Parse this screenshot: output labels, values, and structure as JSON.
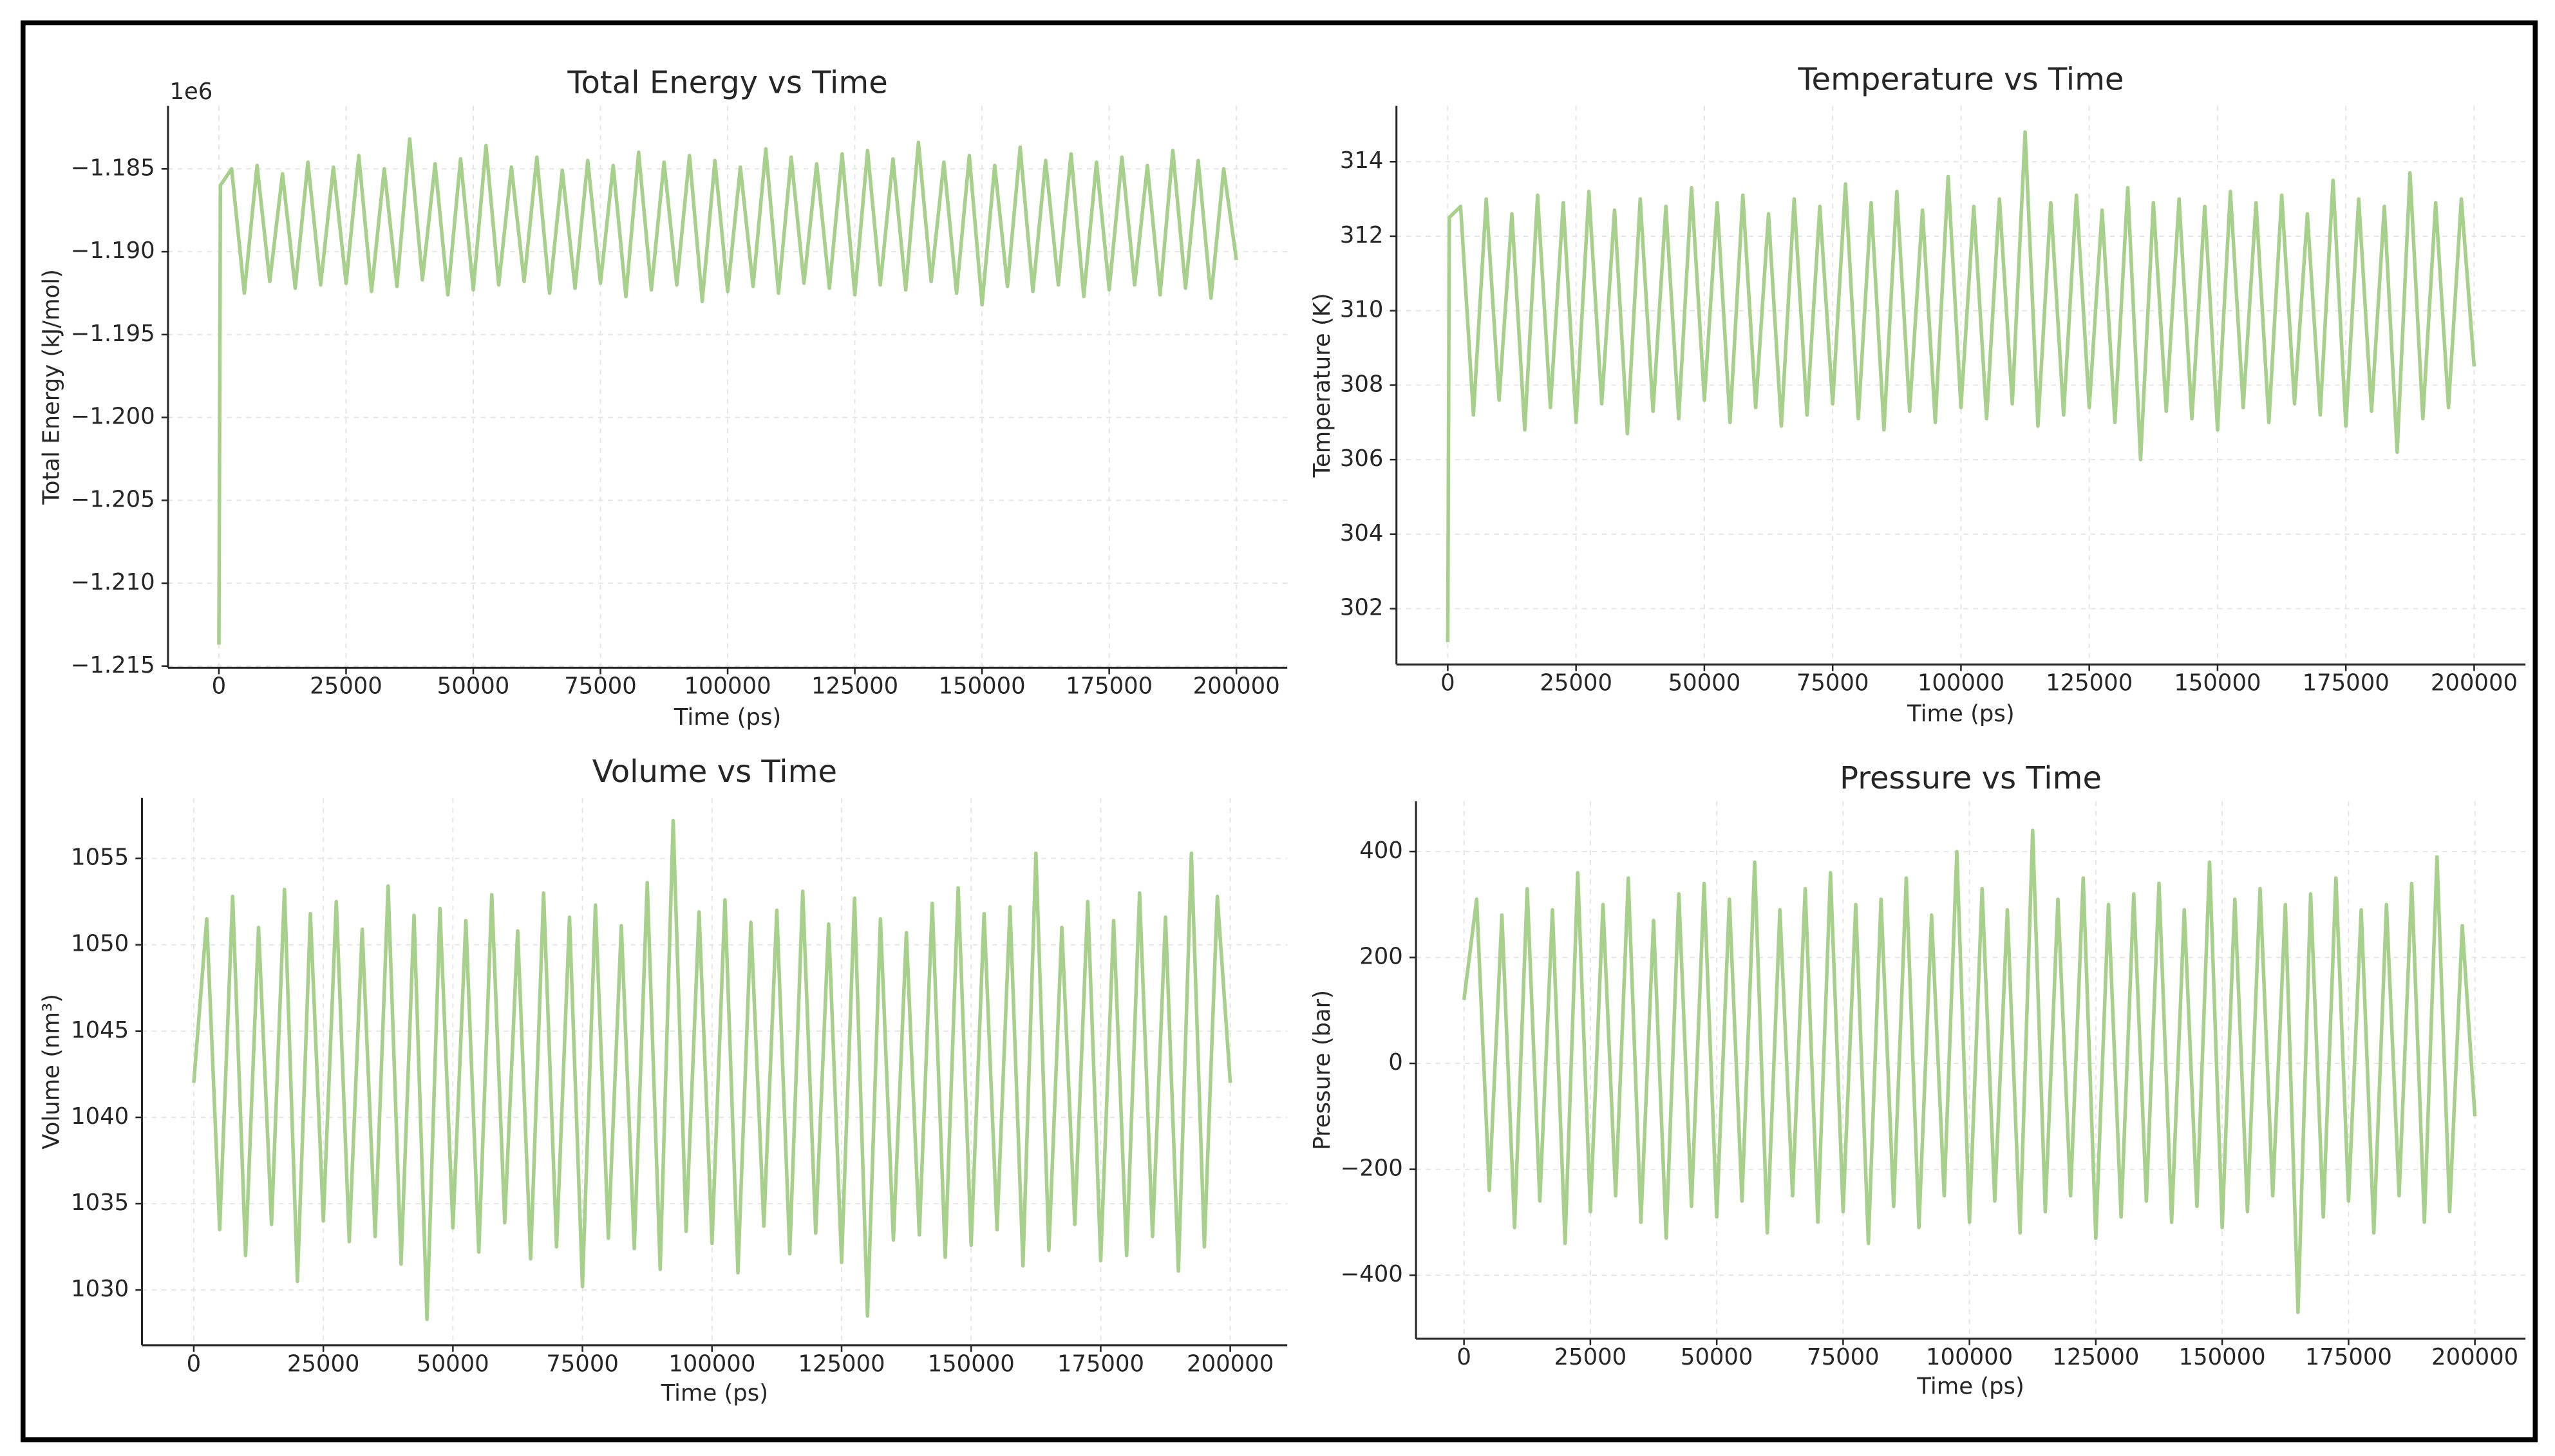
{
  "chart_data": [
    {
      "type": "line",
      "title": "Total Energy vs Time",
      "xlabel": "Time (ps)",
      "ylabel": "Total Energy (kJ/mol)",
      "offset_text": "1e6",
      "color": "#a8d08d",
      "grid": true,
      "x": [
        0,
        300,
        2500,
        5000,
        7500,
        10000,
        12500,
        15000,
        17500,
        20000,
        22500,
        25000,
        27500,
        30000,
        32500,
        35000,
        37500,
        40000,
        42500,
        45000,
        47500,
        50000,
        52500,
        55000,
        57500,
        60000,
        62500,
        65000,
        67500,
        70000,
        72500,
        75000,
        77500,
        80000,
        82500,
        85000,
        87500,
        90000,
        92500,
        95000,
        97500,
        100000,
        102500,
        105000,
        107500,
        110000,
        112500,
        115000,
        117500,
        120000,
        122500,
        125000,
        127500,
        130000,
        132500,
        135000,
        137500,
        140000,
        142500,
        145000,
        147500,
        150000,
        152500,
        155000,
        157500,
        160000,
        162500,
        165000,
        167500,
        170000,
        172500,
        175000,
        177500,
        180000,
        182500,
        185000,
        187500,
        190000,
        192500,
        195000,
        197500,
        200000
      ],
      "values": [
        -1213700,
        -1186000,
        -1185000,
        -1192500,
        -1184800,
        -1191800,
        -1185300,
        -1192200,
        -1184600,
        -1192000,
        -1184900,
        -1191900,
        -1184200,
        -1192400,
        -1185000,
        -1192100,
        -1183200,
        -1191700,
        -1184700,
        -1192600,
        -1184400,
        -1192300,
        -1183600,
        -1192000,
        -1184900,
        -1191800,
        -1184300,
        -1192500,
        -1185100,
        -1192200,
        -1184500,
        -1191900,
        -1184800,
        -1192700,
        -1184000,
        -1192300,
        -1184600,
        -1192000,
        -1184200,
        -1193000,
        -1184500,
        -1192400,
        -1184900,
        -1192100,
        -1183800,
        -1192500,
        -1184300,
        -1191900,
        -1184700,
        -1192200,
        -1184100,
        -1192600,
        -1183900,
        -1192000,
        -1184400,
        -1192300,
        -1183400,
        -1191800,
        -1184600,
        -1192500,
        -1184200,
        -1193200,
        -1184800,
        -1192100,
        -1183700,
        -1192400,
        -1184500,
        -1192000,
        -1184100,
        -1192700,
        -1184600,
        -1192300,
        -1184300,
        -1192000,
        -1184800,
        -1192600,
        -1183900,
        -1192200,
        -1184500,
        -1192800,
        -1185000,
        -1190500
      ],
      "xlim": [
        -10000,
        210000
      ],
      "xticks": [
        0,
        25000,
        50000,
        75000,
        100000,
        125000,
        150000,
        175000,
        200000
      ],
      "ylim": [
        -1215100,
        -1181200
      ],
      "yticks": [
        {
          "value": -1215000,
          "label": "−1.215"
        },
        {
          "value": -1210000,
          "label": "−1.210"
        },
        {
          "value": -1205000,
          "label": "−1.205"
        },
        {
          "value": -1200000,
          "label": "−1.200"
        },
        {
          "value": -1195000,
          "label": "−1.195"
        },
        {
          "value": -1190000,
          "label": "−1.190"
        },
        {
          "value": -1185000,
          "label": "−1.185"
        }
      ]
    },
    {
      "type": "line",
      "title": "Temperature vs Time",
      "xlabel": "Time (ps)",
      "ylabel": "Temperature (K)",
      "color": "#a8d08d",
      "grid": true,
      "x": [
        0,
        300,
        2500,
        5000,
        7500,
        10000,
        12500,
        15000,
        17500,
        20000,
        22500,
        25000,
        27500,
        30000,
        32500,
        35000,
        37500,
        40000,
        42500,
        45000,
        47500,
        50000,
        52500,
        55000,
        57500,
        60000,
        62500,
        65000,
        67500,
        70000,
        72500,
        75000,
        77500,
        80000,
        82500,
        85000,
        87500,
        90000,
        92500,
        95000,
        97500,
        100000,
        102500,
        105000,
        107500,
        110000,
        112500,
        115000,
        117500,
        120000,
        122500,
        125000,
        127500,
        130000,
        132500,
        135000,
        137500,
        140000,
        142500,
        145000,
        147500,
        150000,
        152500,
        155000,
        157500,
        160000,
        162500,
        165000,
        167500,
        170000,
        172500,
        175000,
        177500,
        180000,
        182500,
        185000,
        187500,
        190000,
        192500,
        195000,
        197500,
        200000
      ],
      "values": [
        301.1,
        312.5,
        312.8,
        307.2,
        313.0,
        307.6,
        312.6,
        306.8,
        313.1,
        307.4,
        312.9,
        307.0,
        313.2,
        307.5,
        312.7,
        306.7,
        313.0,
        307.3,
        312.8,
        307.1,
        313.3,
        307.6,
        312.9,
        307.0,
        313.1,
        307.4,
        312.6,
        306.9,
        313.0,
        307.2,
        312.8,
        307.5,
        313.4,
        307.1,
        312.9,
        306.8,
        313.2,
        307.3,
        312.7,
        307.0,
        313.6,
        307.4,
        312.8,
        307.1,
        313.0,
        307.5,
        314.8,
        306.9,
        312.9,
        307.2,
        313.1,
        307.4,
        312.7,
        307.0,
        313.3,
        306.0,
        312.9,
        307.3,
        313.0,
        307.1,
        312.8,
        306.8,
        313.2,
        307.4,
        312.9,
        307.0,
        313.1,
        307.5,
        312.6,
        307.2,
        313.5,
        306.9,
        313.0,
        307.3,
        312.8,
        306.2,
        313.7,
        307.1,
        312.9,
        307.4,
        313.0,
        308.5
      ],
      "xlim": [
        -10000,
        210000
      ],
      "xticks": [
        0,
        25000,
        50000,
        75000,
        100000,
        125000,
        150000,
        175000,
        200000
      ],
      "ylim": [
        300.5,
        315.5
      ],
      "yticks": [
        302,
        304,
        306,
        308,
        310,
        312,
        314
      ]
    },
    {
      "type": "line",
      "title": "Volume vs Time",
      "xlabel": "Time (ps)",
      "ylabel": "Volume (nm³)",
      "color": "#a8d08d",
      "grid": true,
      "x": [
        0,
        2500,
        5000,
        7500,
        10000,
        12500,
        15000,
        17500,
        20000,
        22500,
        25000,
        27500,
        30000,
        32500,
        35000,
        37500,
        40000,
        42500,
        45000,
        47500,
        50000,
        52500,
        55000,
        57500,
        60000,
        62500,
        65000,
        67500,
        70000,
        72500,
        75000,
        77500,
        80000,
        82500,
        85000,
        87500,
        90000,
        92500,
        95000,
        97500,
        100000,
        102500,
        105000,
        107500,
        110000,
        112500,
        115000,
        117500,
        120000,
        122500,
        125000,
        127500,
        130000,
        132500,
        135000,
        137500,
        140000,
        142500,
        145000,
        147500,
        150000,
        152500,
        155000,
        157500,
        160000,
        162500,
        165000,
        167500,
        170000,
        172500,
        175000,
        177500,
        180000,
        182500,
        185000,
        187500,
        190000,
        192500,
        195000,
        197500,
        200000
      ],
      "values": [
        1042,
        1051.5,
        1033.5,
        1052.8,
        1032.0,
        1051.0,
        1033.8,
        1053.2,
        1030.5,
        1051.8,
        1034.0,
        1052.5,
        1032.8,
        1050.9,
        1033.1,
        1053.4,
        1031.5,
        1051.7,
        1028.3,
        1052.1,
        1033.6,
        1051.4,
        1032.2,
        1052.9,
        1033.9,
        1050.8,
        1031.8,
        1053.0,
        1032.5,
        1051.6,
        1030.2,
        1052.3,
        1033.0,
        1051.1,
        1032.4,
        1053.6,
        1031.2,
        1057.2,
        1033.4,
        1051.9,
        1032.7,
        1052.6,
        1031.0,
        1051.3,
        1033.7,
        1052.0,
        1032.1,
        1053.1,
        1033.3,
        1051.2,
        1031.6,
        1052.7,
        1028.5,
        1051.5,
        1032.9,
        1050.7,
        1033.2,
        1052.4,
        1031.9,
        1053.3,
        1032.6,
        1051.8,
        1033.5,
        1052.2,
        1031.4,
        1055.3,
        1032.3,
        1051.0,
        1033.8,
        1052.5,
        1031.7,
        1051.4,
        1032.0,
        1053.0,
        1033.1,
        1051.6,
        1031.1,
        1055.3,
        1032.5,
        1052.8,
        1042.0
      ],
      "xlim": [
        -10000,
        211000
      ],
      "xticks": [
        0,
        25000,
        50000,
        75000,
        100000,
        125000,
        150000,
        175000,
        200000
      ],
      "ylim": [
        1026.8,
        1058.5
      ],
      "yticks": [
        1030,
        1035,
        1040,
        1045,
        1050,
        1055
      ]
    },
    {
      "type": "line",
      "title": "Pressure vs Time",
      "xlabel": "Time (ps)",
      "ylabel": "Pressure (bar)",
      "color": "#a8d08d",
      "grid": true,
      "x": [
        0,
        2500,
        5000,
        7500,
        10000,
        12500,
        15000,
        17500,
        20000,
        22500,
        25000,
        27500,
        30000,
        32500,
        35000,
        37500,
        40000,
        42500,
        45000,
        47500,
        50000,
        52500,
        55000,
        57500,
        60000,
        62500,
        65000,
        67500,
        70000,
        72500,
        75000,
        77500,
        80000,
        82500,
        85000,
        87500,
        90000,
        92500,
        95000,
        97500,
        100000,
        102500,
        105000,
        107500,
        110000,
        112500,
        115000,
        117500,
        120000,
        122500,
        125000,
        127500,
        130000,
        132500,
        135000,
        137500,
        140000,
        142500,
        145000,
        147500,
        150000,
        152500,
        155000,
        157500,
        160000,
        162500,
        165000,
        167500,
        170000,
        172500,
        175000,
        177500,
        180000,
        182500,
        185000,
        187500,
        190000,
        192500,
        195000,
        197500,
        200000
      ],
      "values": [
        120,
        310,
        -240,
        280,
        -310,
        330,
        -260,
        290,
        -340,
        360,
        -280,
        300,
        -250,
        350,
        -300,
        270,
        -330,
        320,
        -270,
        340,
        -290,
        310,
        -260,
        380,
        -320,
        290,
        -250,
        330,
        -300,
        360,
        -280,
        300,
        -340,
        310,
        -270,
        350,
        -310,
        280,
        -250,
        400,
        -300,
        330,
        -260,
        290,
        -320,
        440,
        -280,
        310,
        -250,
        350,
        -330,
        300,
        -290,
        320,
        -260,
        340,
        -300,
        290,
        -270,
        380,
        -310,
        310,
        -280,
        330,
        -250,
        300,
        -470,
        320,
        -290,
        350,
        -260,
        290,
        -320,
        300,
        -250,
        340,
        -300,
        390,
        -280,
        260,
        -100
      ],
      "xlim": [
        -9500,
        210000
      ],
      "xticks": [
        0,
        25000,
        50000,
        75000,
        100000,
        125000,
        150000,
        175000,
        200000
      ],
      "ylim": [
        -520,
        495
      ],
      "yticks": [
        {
          "value": -400,
          "label": "−400"
        },
        {
          "value": -200,
          "label": "−200"
        },
        0,
        200,
        400
      ]
    }
  ]
}
